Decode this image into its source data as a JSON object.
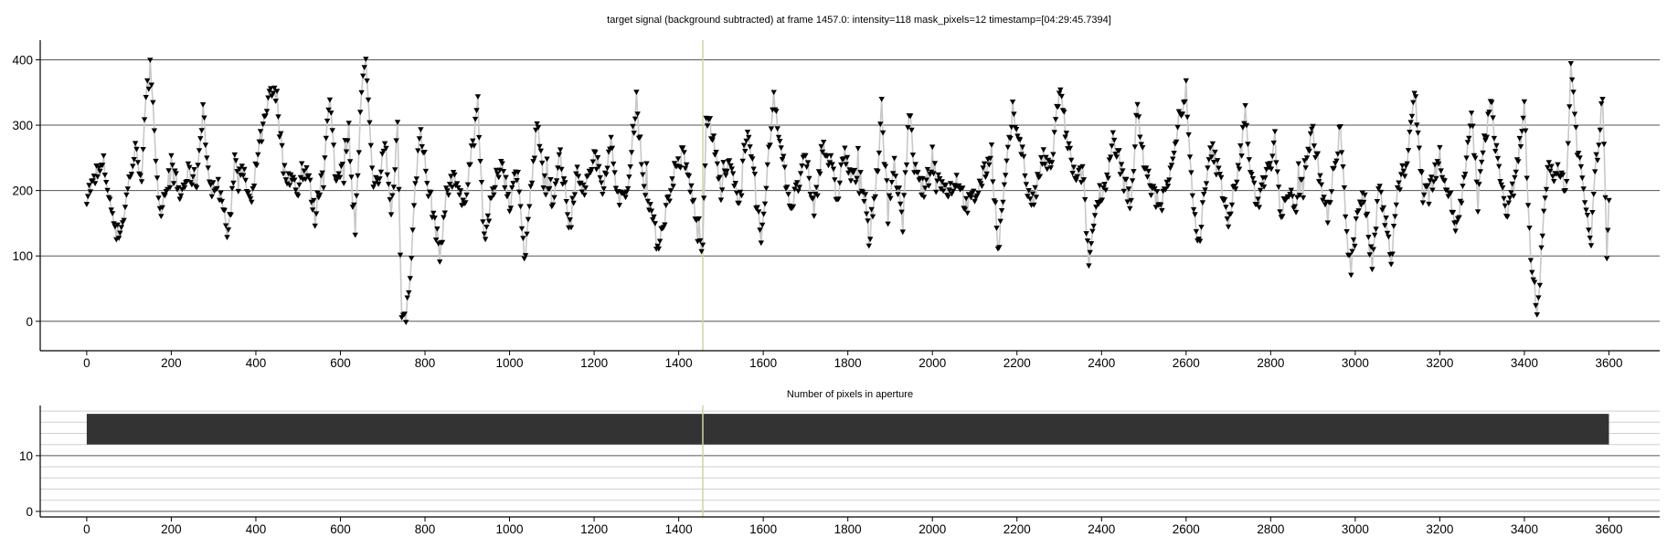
{
  "chart_data": [
    {
      "type": "scatter",
      "title": "target signal (background subtracted) at frame 1457.0: intensity=118 mask_pixels=12 timestamp=[04:29:45.7394]",
      "xlabel": "",
      "ylabel": "",
      "xlim": [
        -110,
        3720
      ],
      "ylim": [
        -45,
        430
      ],
      "xticks": [
        0,
        200,
        400,
        600,
        800,
        1000,
        1200,
        1400,
        1600,
        1800,
        2000,
        2200,
        2400,
        2600,
        2800,
        3000,
        3200,
        3400,
        3600
      ],
      "yticks": [
        0,
        100,
        200,
        300,
        400
      ],
      "grid": "y",
      "marker": "down-triangle",
      "marker_color": "#000000",
      "connector_color": "#c8c8c8",
      "current_frame": 1457,
      "current_frame_color": "#c9d9a0",
      "frames": [
        0,
        3600
      ],
      "series": [
        {
          "points": [
            [
              0,
              195
            ],
            [
              20,
              215
            ],
            [
              40,
              240
            ],
            [
              55,
              185
            ],
            [
              70,
              130
            ],
            [
              85,
              150
            ],
            [
              100,
              215
            ],
            [
              115,
              260
            ],
            [
              130,
              225
            ],
            [
              140,
              330
            ],
            [
              150,
              405
            ],
            [
              160,
              300
            ],
            [
              170,
              160
            ],
            [
              185,
              200
            ],
            [
              200,
              240
            ],
            [
              220,
              190
            ],
            [
              240,
              225
            ],
            [
              260,
              215
            ],
            [
              275,
              330
            ],
            [
              290,
              200
            ],
            [
              305,
              215
            ],
            [
              320,
              185
            ],
            [
              335,
              125
            ],
            [
              350,
              250
            ],
            [
              370,
              225
            ],
            [
              390,
              175
            ],
            [
              405,
              260
            ],
            [
              420,
              300
            ],
            [
              435,
              350
            ],
            [
              450,
              340
            ],
            [
              465,
              235
            ],
            [
              480,
              220
            ],
            [
              500,
              200
            ],
            [
              520,
              235
            ],
            [
              540,
              160
            ],
            [
              560,
              245
            ],
            [
              575,
              335
            ],
            [
              590,
              210
            ],
            [
              605,
              250
            ],
            [
              620,
              290
            ],
            [
              635,
              140
            ],
            [
              650,
              350
            ],
            [
              660,
              395
            ],
            [
              675,
              225
            ],
            [
              690,
              200
            ],
            [
              705,
              280
            ],
            [
              720,
              160
            ],
            [
              735,
              300
            ],
            [
              745,
              20
            ],
            [
              755,
              0
            ],
            [
              765,
              75
            ],
            [
              780,
              230
            ],
            [
              790,
              300
            ],
            [
              805,
              210
            ],
            [
              820,
              165
            ],
            [
              835,
              100
            ],
            [
              850,
              190
            ],
            [
              870,
              230
            ],
            [
              890,
              170
            ],
            [
              910,
              260
            ],
            [
              925,
              320
            ],
            [
              940,
              130
            ],
            [
              960,
              190
            ],
            [
              980,
              250
            ],
            [
              1000,
              180
            ],
            [
              1020,
              240
            ],
            [
              1035,
              90
            ],
            [
              1050,
              195
            ],
            [
              1065,
              300
            ],
            [
              1080,
              220
            ],
            [
              1100,
              180
            ],
            [
              1120,
              260
            ],
            [
              1140,
              150
            ],
            [
              1160,
              230
            ],
            [
              1180,
              200
            ],
            [
              1200,
              255
            ],
            [
              1220,
              210
            ],
            [
              1240,
              270
            ],
            [
              1260,
              180
            ],
            [
              1280,
              200
            ],
            [
              1300,
              345
            ],
            [
              1315,
              220
            ],
            [
              1330,
              185
            ],
            [
              1350,
              115
            ],
            [
              1370,
              170
            ],
            [
              1390,
              230
            ],
            [
              1410,
              255
            ],
            [
              1430,
              200
            ],
            [
              1445,
              135
            ],
            [
              1457,
              118
            ],
            [
              1465,
              320
            ],
            [
              1480,
              280
            ],
            [
              1500,
              200
            ],
            [
              1520,
              240
            ],
            [
              1540,
              180
            ],
            [
              1560,
              290
            ],
            [
              1580,
              210
            ],
            [
              1595,
              120
            ],
            [
              1610,
              230
            ],
            [
              1625,
              350
            ],
            [
              1645,
              250
            ],
            [
              1665,
              175
            ],
            [
              1680,
              200
            ],
            [
              1700,
              250
            ],
            [
              1720,
              170
            ],
            [
              1740,
              270
            ],
            [
              1760,
              240
            ],
            [
              1775,
              185
            ],
            [
              1790,
              260
            ],
            [
              1810,
              215
            ],
            [
              1830,
              230
            ],
            [
              1850,
              125
            ],
            [
              1865,
              200
            ],
            [
              1880,
              310
            ],
            [
              1895,
              175
            ],
            [
              1910,
              240
            ],
            [
              1930,
              150
            ],
            [
              1945,
              320
            ],
            [
              1960,
              220
            ],
            [
              1980,
              200
            ],
            [
              2000,
              240
            ],
            [
              2020,
              210
            ],
            [
              2040,
              200
            ],
            [
              2060,
              220
            ],
            [
              2080,
              175
            ],
            [
              2100,
              190
            ],
            [
              2120,
              220
            ],
            [
              2140,
              260
            ],
            [
              2155,
              105
            ],
            [
              2170,
              200
            ],
            [
              2190,
              320
            ],
            [
              2210,
              270
            ],
            [
              2225,
              200
            ],
            [
              2240,
              180
            ],
            [
              2260,
              250
            ],
            [
              2280,
              230
            ],
            [
              2300,
              355
            ],
            [
              2320,
              270
            ],
            [
              2340,
              210
            ],
            [
              2355,
              230
            ],
            [
              2370,
              90
            ],
            [
              2390,
              190
            ],
            [
              2410,
              210
            ],
            [
              2430,
              280
            ],
            [
              2450,
              220
            ],
            [
              2470,
              180
            ],
            [
              2485,
              330
            ],
            [
              2500,
              240
            ],
            [
              2520,
              200
            ],
            [
              2540,
              170
            ],
            [
              2560,
              230
            ],
            [
              2580,
              290
            ],
            [
              2600,
              355
            ],
            [
              2615,
              180
            ],
            [
              2630,
              120
            ],
            [
              2645,
              200
            ],
            [
              2660,
              265
            ],
            [
              2680,
              220
            ],
            [
              2700,
              160
            ],
            [
              2720,
              215
            ],
            [
              2740,
              320
            ],
            [
              2755,
              210
            ],
            [
              2770,
              180
            ],
            [
              2790,
              235
            ],
            [
              2810,
              275
            ],
            [
              2825,
              160
            ],
            [
              2840,
              195
            ],
            [
              2860,
              180
            ],
            [
              2880,
              240
            ],
            [
              2900,
              290
            ],
            [
              2920,
              205
            ],
            [
              2935,
              160
            ],
            [
              2950,
              220
            ],
            [
              2965,
              300
            ],
            [
              2980,
              130
            ],
            [
              2990,
              75
            ],
            [
              3005,
              160
            ],
            [
              3020,
              210
            ],
            [
              3040,
              80
            ],
            [
              3055,
              200
            ],
            [
              3070,
              175
            ],
            [
              3085,
              90
            ],
            [
              3100,
              200
            ],
            [
              3120,
              240
            ],
            [
              3140,
              350
            ],
            [
              3160,
              200
            ],
            [
              3180,
              210
            ],
            [
              3200,
              250
            ],
            [
              3220,
              200
            ],
            [
              3240,
              140
            ],
            [
              3260,
              220
            ],
            [
              3275,
              320
            ],
            [
              3290,
              180
            ],
            [
              3305,
              270
            ],
            [
              3320,
              335
            ],
            [
              3340,
              230
            ],
            [
              3360,
              160
            ],
            [
              3380,
              220
            ],
            [
              3400,
              330
            ],
            [
              3415,
              80
            ],
            [
              3430,
              0
            ],
            [
              3440,
              100
            ],
            [
              3455,
              240
            ],
            [
              3470,
              230
            ],
            [
              3485,
              220
            ],
            [
              3500,
              210
            ],
            [
              3510,
              395
            ],
            [
              3525,
              270
            ],
            [
              3540,
              200
            ],
            [
              3555,
              130
            ],
            [
              3570,
              240
            ],
            [
              3585,
              340
            ],
            [
              3595,
              100
            ],
            [
              3600,
              185
            ]
          ]
        }
      ]
    },
    {
      "type": "bar",
      "title": "Number of pixels in aperture",
      "xlabel": "",
      "ylabel": "",
      "xlim": [
        -110,
        3720
      ],
      "ylim": [
        -1,
        19
      ],
      "xticks": [
        0,
        200,
        400,
        600,
        800,
        1000,
        1200,
        1400,
        1600,
        1800,
        2000,
        2200,
        2400,
        2600,
        2800,
        3000,
        3200,
        3400,
        3600
      ],
      "yticks": [
        0,
        10
      ],
      "grid": "y",
      "bar_color": "#333333",
      "current_frame": 1457,
      "current_frame_color": "#c9d9a0",
      "bars": [
        {
          "x_start": 0,
          "x_end": 3600,
          "y_from": 12,
          "y_to": 17.5
        }
      ]
    }
  ]
}
